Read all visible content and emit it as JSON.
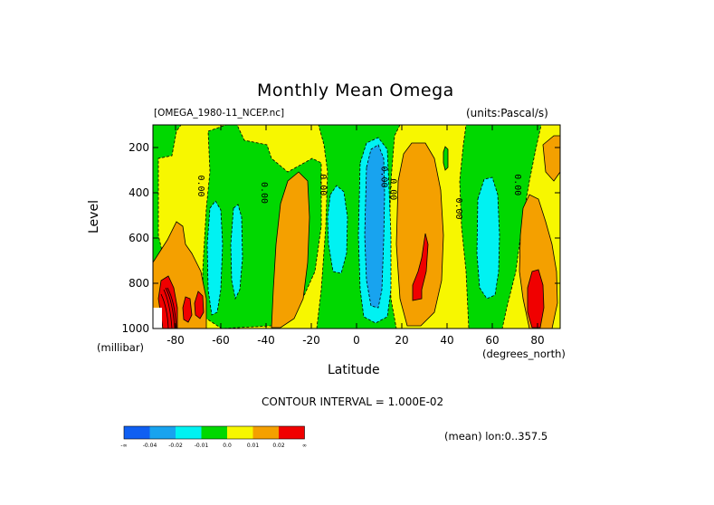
{
  "page": {
    "title": "Monthly Mean Omega",
    "file_label": "[OMEGA_1980-11_NCEP.nc]",
    "units_label": "(units:Pascal/s)",
    "contour_interval_text": "CONTOUR INTERVAL = 1.000E-02",
    "mean_note": "(mean) lon:0..357.5"
  },
  "chart_data": {
    "type": "heatmap",
    "title": "Monthly Mean Omega",
    "xlabel": "Latitude",
    "xunits": "(degrees_north)",
    "ylabel": "Level",
    "yunits": "(millibar)",
    "xlim": [
      -90,
      90
    ],
    "ylim": [
      1000,
      100
    ],
    "x_ticks": [
      -80,
      -60,
      -40,
      -20,
      0,
      20,
      40,
      60,
      80
    ],
    "x_tick_labels": [
      "-80",
      "-60",
      "-40",
      "-20",
      "0",
      "20",
      "40",
      "60",
      "80"
    ],
    "y_ticks": [
      200,
      400,
      600,
      800,
      1000
    ],
    "y_tick_labels": [
      "200",
      "400",
      "600",
      "800",
      "1000"
    ],
    "contour_interval": 0.01,
    "zero_contour_labels": [
      {
        "x": -70,
        "y": 370,
        "text": "0.00"
      },
      {
        "x": -42,
        "y": 400,
        "text": "0.00"
      },
      {
        "x": -16,
        "y": 365,
        "text": "0.00"
      },
      {
        "x": 11,
        "y": 330,
        "text": "0.00"
      },
      {
        "x": 15,
        "y": 385,
        "text": "0.00"
      },
      {
        "x": 44,
        "y": 470,
        "text": "0.00"
      },
      {
        "x": 70,
        "y": 365,
        "text": "0.00"
      }
    ],
    "colorbar": {
      "colors": [
        "#0f5ff2",
        "#18a3ef",
        "#00f2f2",
        "#00d800",
        "#f7f700",
        "#f4a000",
        "#f00000"
      ],
      "labels": [
        "-∞",
        "-0.04",
        "-0.02",
        "-0.01",
        "0.0",
        "0.01",
        "0.02",
        "∞"
      ]
    },
    "legend": "bottom-left"
  }
}
